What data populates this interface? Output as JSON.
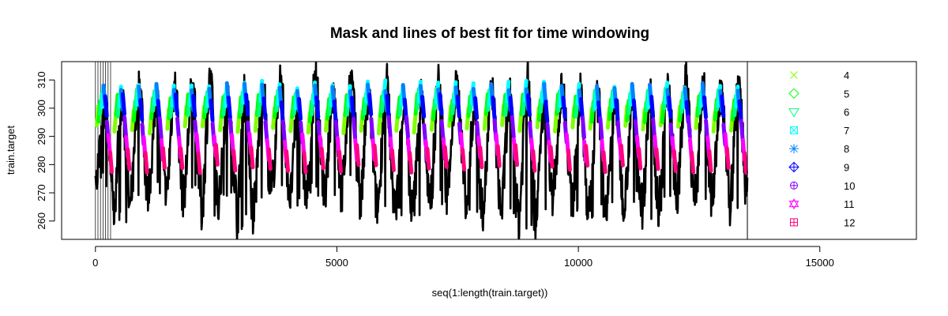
{
  "chart_data": {
    "type": "line",
    "title": "Mask and lines of best fit for time windowing",
    "xlabel": "seq(1:length(train.target))",
    "ylabel": "train.target",
    "xlim": [
      -700,
      17000
    ],
    "ylim": [
      253.5,
      316.5
    ],
    "x_ticks": [
      0,
      5000,
      10000,
      15000
    ],
    "y_ticks": [
      260,
      270,
      280,
      290,
      300,
      310
    ],
    "grid": false,
    "legend_position": "right",
    "legend_box_x": [
      13500,
      17000
    ],
    "series": [
      {
        "type": "line",
        "color": "#000000",
        "x_range": [
          0,
          13500
        ],
        "cycles": 37,
        "mean": 287,
        "peak_max": [
          301,
          314
        ],
        "trough_min": [
          256,
          273
        ]
      },
      {
        "type": "mask",
        "color": "#000000",
        "x_range": [
          0,
          350
        ],
        "y_range": [
          253.5,
          316.5
        ]
      }
    ],
    "fit_lines": [
      {
        "name": "4",
        "color": "#80ff00",
        "y_level": 296
      },
      {
        "name": "5",
        "color": "#00ff00",
        "y_level": 300
      },
      {
        "name": "6",
        "color": "#00ff80",
        "y_level": 302
      },
      {
        "name": "7",
        "color": "#00ffff",
        "y_level": 305
      },
      {
        "name": "8",
        "color": "#0080ff",
        "y_level": 304
      },
      {
        "name": "9",
        "color": "#0000ff",
        "y_level": 300
      },
      {
        "name": "10",
        "color": "#8000ff",
        "y_level": 292
      },
      {
        "name": "11",
        "color": "#ff00ff",
        "y_level": 286
      },
      {
        "name": "12",
        "color": "#ff0080",
        "y_level": 282
      }
    ],
    "legend": [
      {
        "label": "4",
        "symbol": "cross",
        "color": "#80ff00"
      },
      {
        "label": "5",
        "symbol": "diamond",
        "color": "#00ff00"
      },
      {
        "label": "6",
        "symbol": "triangle-down",
        "color": "#00ff80"
      },
      {
        "label": "7",
        "symbol": "square-x",
        "color": "#00ffff"
      },
      {
        "label": "8",
        "symbol": "asterisk",
        "color": "#0080ff"
      },
      {
        "label": "9",
        "symbol": "diamond-plus",
        "color": "#0000ff"
      },
      {
        "label": "10",
        "symbol": "circle-plus",
        "color": "#8000ff"
      },
      {
        "label": "11",
        "symbol": "star-of-david",
        "color": "#ff00ff"
      },
      {
        "label": "12",
        "symbol": "square-plus",
        "color": "#ff0080"
      }
    ]
  }
}
